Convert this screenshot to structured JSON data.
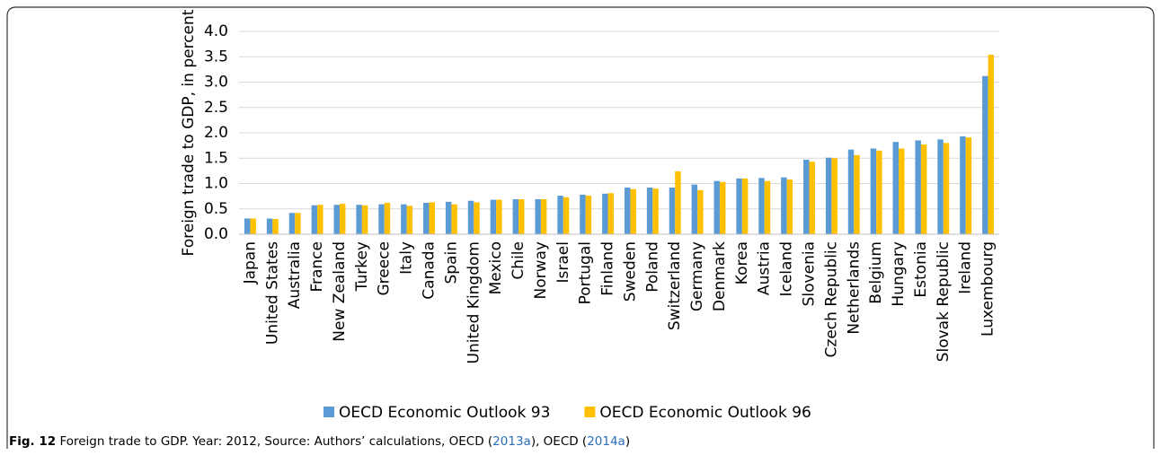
{
  "chart_data": {
    "type": "bar",
    "y_label": "Foreign trade to GDP, in percent",
    "categories": [
      "Japan",
      "United States",
      "Australia",
      "France",
      "New Zealand",
      "Turkey",
      "Greece",
      "Italy",
      "Canada",
      "Spain",
      "United Kingdom",
      "Mexico",
      "Chile",
      "Norway",
      "Israel",
      "Portugal",
      "Finland",
      "Sweden",
      "Poland",
      "Switzerland",
      "Germany",
      "Denmark",
      "Korea",
      "Austria",
      "Iceland",
      "Slovenia",
      "Czech Republic",
      "Netherlands",
      "Belgium",
      "Hungary",
      "Estonia",
      "Slovak Republic",
      "Ireland",
      "Luxembourg"
    ],
    "series": [
      {
        "name": "OECD Economic Outlook 93",
        "color": "#5b9bd5",
        "values": [
          0.31,
          0.31,
          0.42,
          0.57,
          0.58,
          0.58,
          0.59,
          0.59,
          0.62,
          0.64,
          0.66,
          0.68,
          0.69,
          0.69,
          0.76,
          0.78,
          0.8,
          0.92,
          0.92,
          0.92,
          0.98,
          1.05,
          1.1,
          1.11,
          1.12,
          1.47,
          1.51,
          1.67,
          1.69,
          1.82,
          1.85,
          1.87,
          1.93,
          3.12
        ]
      },
      {
        "name": "OECD Economic Outlook 96",
        "color": "#ffc000",
        "values": [
          0.31,
          0.3,
          0.42,
          0.58,
          0.6,
          0.57,
          0.62,
          0.56,
          0.63,
          0.59,
          0.63,
          0.68,
          0.69,
          0.69,
          0.73,
          0.76,
          0.81,
          0.89,
          0.9,
          1.24,
          0.87,
          1.03,
          1.1,
          1.05,
          1.08,
          1.43,
          1.5,
          1.56,
          1.65,
          1.69,
          1.77,
          1.8,
          1.91,
          3.54
        ]
      }
    ],
    "ylim": [
      0,
      4
    ],
    "yticks": [
      {
        "value": 0,
        "label": "0.0"
      },
      0.5,
      {
        "value": 1,
        "label": "1.0"
      },
      1.5,
      {
        "value": 2,
        "label": "2.0"
      },
      2.5,
      {
        "value": 3,
        "label": "3.0"
      },
      3.5,
      {
        "value": 4,
        "label": "4.0"
      }
    ],
    "grid": true,
    "legend": "bottom"
  },
  "caption": {
    "label": "Fig. 12",
    "text": "Foreign trade to GDP. Year: 2012, Source: Authors’ calculations, OECD (",
    "ref1": "2013a",
    "middle": "), OECD (",
    "ref2": "2014a",
    "end": ")"
  }
}
